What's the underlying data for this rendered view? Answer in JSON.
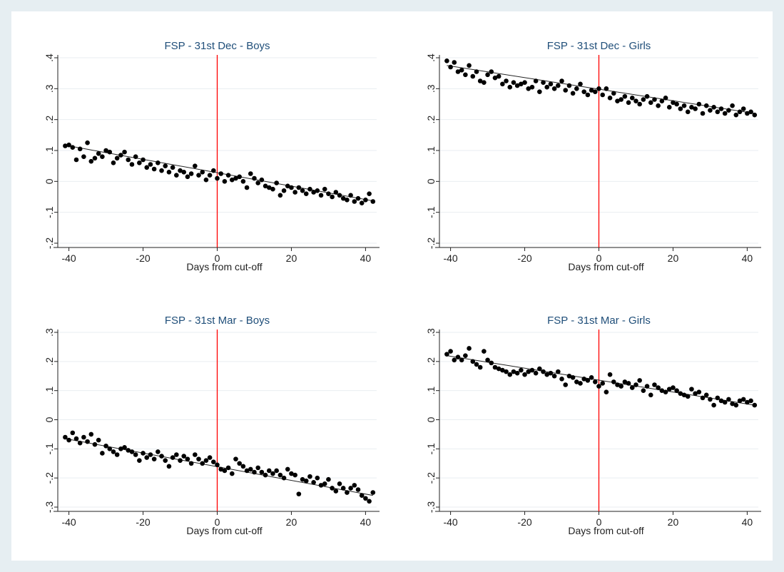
{
  "chart_data": [
    {
      "type": "scatter",
      "title": "FSP - 31st Dec - Boys",
      "xlabel": "Days from cut-off",
      "ylabel": "",
      "xlim": [
        -43,
        43
      ],
      "ylim": [
        -0.2,
        0.4
      ],
      "xticks": [
        -40,
        -20,
        0,
        20,
        40
      ],
      "xtick_labels": [
        "-40",
        "-20",
        "0",
        "20",
        "40"
      ],
      "yticks": [
        -0.2,
        -0.1,
        0,
        0.1,
        0.2,
        0.3,
        0.4
      ],
      "ytick_labels": [
        "-.2",
        "-.1",
        "0",
        ".1",
        ".2",
        ".3",
        ".4"
      ],
      "cutoff": 0,
      "cutoff_color": "#ff0000",
      "point_color": "#000000",
      "fit_line": {
        "x": [
          -41,
          42
        ],
        "y": [
          0.117,
          -0.063
        ]
      },
      "points": {
        "x": [
          -41,
          -40,
          -39,
          -38,
          -37,
          -36,
          -35,
          -34,
          -33,
          -32,
          -31,
          -30,
          -29,
          -28,
          -27,
          -26,
          -25,
          -24,
          -23,
          -22,
          -21,
          -20,
          -19,
          -18,
          -17,
          -16,
          -15,
          -14,
          -13,
          -12,
          -11,
          -10,
          -9,
          -8,
          -7,
          -6,
          -5,
          -4,
          -3,
          -2,
          -1,
          0,
          1,
          2,
          3,
          4,
          5,
          6,
          7,
          8,
          9,
          10,
          11,
          12,
          13,
          14,
          15,
          16,
          17,
          18,
          19,
          20,
          21,
          22,
          23,
          24,
          25,
          26,
          27,
          28,
          29,
          30,
          31,
          32,
          33,
          34,
          35,
          36,
          37,
          38,
          39,
          40,
          41,
          42
        ],
        "y": [
          0.115,
          0.118,
          0.11,
          0.07,
          0.105,
          0.08,
          0.125,
          0.065,
          0.075,
          0.09,
          0.08,
          0.1,
          0.095,
          0.06,
          0.075,
          0.085,
          0.095,
          0.07,
          0.055,
          0.08,
          0.06,
          0.07,
          0.045,
          0.055,
          0.04,
          0.06,
          0.035,
          0.05,
          0.03,
          0.045,
          0.02,
          0.035,
          0.03,
          0.015,
          0.025,
          0.05,
          0.02,
          0.03,
          0.005,
          0.02,
          0.035,
          0.01,
          0.025,
          0.0,
          0.02,
          0.005,
          0.01,
          0.015,
          0.0,
          -0.02,
          0.025,
          0.01,
          -0.005,
          0.005,
          -0.015,
          -0.02,
          -0.025,
          -0.005,
          -0.045,
          -0.03,
          -0.015,
          -0.02,
          -0.035,
          -0.02,
          -0.03,
          -0.04,
          -0.025,
          -0.035,
          -0.03,
          -0.045,
          -0.025,
          -0.04,
          -0.05,
          -0.035,
          -0.045,
          -0.055,
          -0.06,
          -0.045,
          -0.065,
          -0.055,
          -0.07,
          -0.06,
          -0.04,
          -0.065
        ]
      }
    },
    {
      "type": "scatter",
      "title": "FSP - 31st Dec - Girls",
      "xlabel": "Days from cut-off",
      "ylabel": "",
      "xlim": [
        -43,
        43
      ],
      "ylim": [
        -0.2,
        0.4
      ],
      "xticks": [
        -40,
        -20,
        0,
        20,
        40
      ],
      "xtick_labels": [
        "-40",
        "-20",
        "0",
        "20",
        "40"
      ],
      "yticks": [
        -0.2,
        -0.1,
        0,
        0.1,
        0.2,
        0.3,
        0.4
      ],
      "ytick_labels": [
        "-.2",
        "-.1",
        "0",
        ".1",
        ".2",
        ".3",
        ".4"
      ],
      "cutoff": 0,
      "cutoff_color": "#ff0000",
      "point_color": "#000000",
      "fit_line": {
        "x": [
          -41,
          42
        ],
        "y": [
          0.375,
          0.22
        ]
      },
      "points": {
        "x": [
          -41,
          -40,
          -39,
          -38,
          -37,
          -36,
          -35,
          -34,
          -33,
          -32,
          -31,
          -30,
          -29,
          -28,
          -27,
          -26,
          -25,
          -24,
          -23,
          -22,
          -21,
          -20,
          -19,
          -18,
          -17,
          -16,
          -15,
          -14,
          -13,
          -12,
          -11,
          -10,
          -9,
          -8,
          -7,
          -6,
          -5,
          -4,
          -3,
          -2,
          -1,
          0,
          1,
          2,
          3,
          4,
          5,
          6,
          7,
          8,
          9,
          10,
          11,
          12,
          13,
          14,
          15,
          16,
          17,
          18,
          19,
          20,
          21,
          22,
          23,
          24,
          25,
          26,
          27,
          28,
          29,
          30,
          31,
          32,
          33,
          34,
          35,
          36,
          37,
          38,
          39,
          40,
          41,
          42
        ],
        "y": [
          0.39,
          0.37,
          0.385,
          0.355,
          0.36,
          0.345,
          0.375,
          0.34,
          0.355,
          0.325,
          0.32,
          0.345,
          0.355,
          0.335,
          0.34,
          0.315,
          0.325,
          0.305,
          0.32,
          0.31,
          0.315,
          0.32,
          0.3,
          0.305,
          0.325,
          0.29,
          0.32,
          0.305,
          0.315,
          0.3,
          0.31,
          0.325,
          0.295,
          0.31,
          0.285,
          0.3,
          0.315,
          0.29,
          0.28,
          0.295,
          0.29,
          0.3,
          0.28,
          0.3,
          0.27,
          0.285,
          0.26,
          0.265,
          0.275,
          0.255,
          0.27,
          0.26,
          0.25,
          0.265,
          0.275,
          0.255,
          0.265,
          0.245,
          0.26,
          0.27,
          0.24,
          0.255,
          0.25,
          0.235,
          0.245,
          0.225,
          0.24,
          0.235,
          0.25,
          0.22,
          0.245,
          0.23,
          0.24,
          0.225,
          0.235,
          0.22,
          0.23,
          0.245,
          0.215,
          0.225,
          0.235,
          0.22,
          0.225,
          0.215
        ]
      }
    },
    {
      "type": "scatter",
      "title": "FSP - 31st Mar - Boys",
      "xlabel": "Days from cut-off",
      "ylabel": "",
      "xlim": [
        -43,
        43
      ],
      "ylim": [
        -0.3,
        0.3
      ],
      "xticks": [
        -40,
        -20,
        0,
        20,
        40
      ],
      "xtick_labels": [
        "-40",
        "-20",
        "0",
        "20",
        "40"
      ],
      "yticks": [
        -0.3,
        -0.2,
        -0.1,
        0,
        0.1,
        0.2,
        0.3
      ],
      "ytick_labels": [
        "-.3",
        "-.2",
        "-.1",
        "0",
        ".1",
        ".2",
        ".3"
      ],
      "cutoff": 0,
      "cutoff_color": "#ff0000",
      "point_color": "#000000",
      "fit_line": {
        "x": [
          -41,
          42
        ],
        "y": [
          -0.065,
          -0.26
        ]
      },
      "points": {
        "x": [
          -41,
          -40,
          -39,
          -38,
          -37,
          -36,
          -35,
          -34,
          -33,
          -32,
          -31,
          -30,
          -29,
          -28,
          -27,
          -26,
          -25,
          -24,
          -23,
          -22,
          -21,
          -20,
          -19,
          -18,
          -17,
          -16,
          -15,
          -14,
          -13,
          -12,
          -11,
          -10,
          -9,
          -8,
          -7,
          -6,
          -5,
          -4,
          -3,
          -2,
          -1,
          0,
          1,
          2,
          3,
          4,
          5,
          6,
          7,
          8,
          9,
          10,
          11,
          12,
          13,
          14,
          15,
          16,
          17,
          18,
          19,
          20,
          21,
          22,
          23,
          24,
          25,
          26,
          27,
          28,
          29,
          30,
          31,
          32,
          33,
          34,
          35,
          36,
          37,
          38,
          39,
          40,
          41,
          42
        ],
        "y": [
          -0.06,
          -0.07,
          -0.045,
          -0.065,
          -0.08,
          -0.06,
          -0.075,
          -0.05,
          -0.085,
          -0.07,
          -0.115,
          -0.09,
          -0.1,
          -0.11,
          -0.12,
          -0.1,
          -0.095,
          -0.105,
          -0.11,
          -0.12,
          -0.14,
          -0.115,
          -0.13,
          -0.12,
          -0.135,
          -0.11,
          -0.125,
          -0.14,
          -0.16,
          -0.13,
          -0.12,
          -0.14,
          -0.125,
          -0.135,
          -0.15,
          -0.12,
          -0.135,
          -0.15,
          -0.14,
          -0.13,
          -0.145,
          -0.155,
          -0.17,
          -0.175,
          -0.165,
          -0.185,
          -0.135,
          -0.15,
          -0.16,
          -0.175,
          -0.17,
          -0.18,
          -0.165,
          -0.18,
          -0.19,
          -0.175,
          -0.185,
          -0.175,
          -0.19,
          -0.2,
          -0.17,
          -0.185,
          -0.19,
          -0.255,
          -0.205,
          -0.21,
          -0.195,
          -0.215,
          -0.2,
          -0.225,
          -0.22,
          -0.205,
          -0.235,
          -0.245,
          -0.22,
          -0.235,
          -0.25,
          -0.235,
          -0.225,
          -0.24,
          -0.26,
          -0.27,
          -0.28,
          -0.25
        ]
      }
    },
    {
      "type": "scatter",
      "title": "FSP - 31st Mar - Girls",
      "xlabel": "Days from cut-off",
      "ylabel": "",
      "xlim": [
        -43,
        43
      ],
      "ylim": [
        -0.3,
        0.3
      ],
      "xticks": [
        -40,
        -20,
        0,
        20,
        40
      ],
      "xtick_labels": [
        "-40",
        "-20",
        "0",
        "20",
        "40"
      ],
      "yticks": [
        -0.3,
        -0.2,
        -0.1,
        0,
        0.1,
        0.2,
        0.3
      ],
      "ytick_labels": [
        "-.3",
        "-.2",
        "-.1",
        "0",
        ".1",
        ".2",
        ".3"
      ],
      "cutoff": 0,
      "cutoff_color": "#ff0000",
      "point_color": "#000000",
      "fit_line": {
        "x": [
          -41,
          42
        ],
        "y": [
          0.22,
          0.05
        ]
      },
      "points": {
        "x": [
          -41,
          -40,
          -39,
          -38,
          -37,
          -36,
          -35,
          -34,
          -33,
          -32,
          -31,
          -30,
          -29,
          -28,
          -27,
          -26,
          -25,
          -24,
          -23,
          -22,
          -21,
          -20,
          -19,
          -18,
          -17,
          -16,
          -15,
          -14,
          -13,
          -12,
          -11,
          -10,
          -9,
          -8,
          -7,
          -6,
          -5,
          -4,
          -3,
          -2,
          -1,
          0,
          1,
          2,
          3,
          4,
          5,
          6,
          7,
          8,
          9,
          10,
          11,
          12,
          13,
          14,
          15,
          16,
          17,
          18,
          19,
          20,
          21,
          22,
          23,
          24,
          25,
          26,
          27,
          28,
          29,
          30,
          31,
          32,
          33,
          34,
          35,
          36,
          37,
          38,
          39,
          40,
          41,
          42
        ],
        "y": [
          0.225,
          0.235,
          0.205,
          0.215,
          0.205,
          0.22,
          0.245,
          0.2,
          0.19,
          0.18,
          0.235,
          0.205,
          0.195,
          0.18,
          0.175,
          0.17,
          0.165,
          0.155,
          0.165,
          0.16,
          0.17,
          0.155,
          0.165,
          0.17,
          0.16,
          0.175,
          0.165,
          0.155,
          0.16,
          0.15,
          0.165,
          0.14,
          0.12,
          0.15,
          0.145,
          0.13,
          0.125,
          0.14,
          0.135,
          0.145,
          0.13,
          0.115,
          0.125,
          0.095,
          0.155,
          0.13,
          0.12,
          0.115,
          0.13,
          0.125,
          0.11,
          0.12,
          0.135,
          0.1,
          0.115,
          0.085,
          0.12,
          0.11,
          0.1,
          0.095,
          0.105,
          0.11,
          0.1,
          0.09,
          0.085,
          0.08,
          0.105,
          0.09,
          0.095,
          0.075,
          0.085,
          0.07,
          0.05,
          0.075,
          0.065,
          0.06,
          0.07,
          0.055,
          0.05,
          0.065,
          0.07,
          0.06,
          0.065,
          0.05
        ]
      }
    }
  ]
}
